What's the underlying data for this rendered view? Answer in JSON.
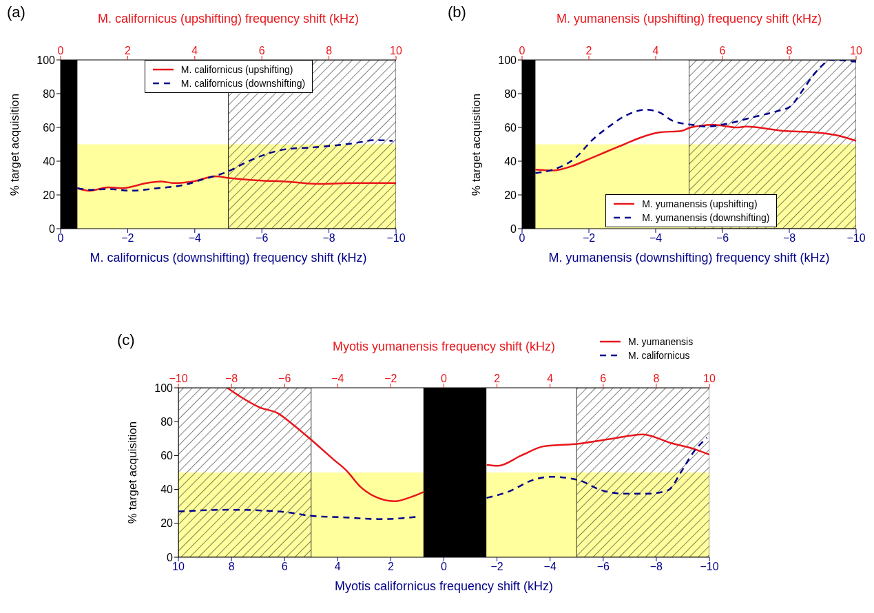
{
  "chart_data": [
    {
      "type": "line",
      "title": "(a)",
      "x2label": "M. californicus (upshifting) frequency shift (kHz)",
      "xlabel": "M. californicus (downshifting) frequency shift (kHz)",
      "ylabel": "% target acquisition",
      "x2lim": [
        0,
        10
      ],
      "x2ticks": [
        0,
        2,
        4,
        6,
        8,
        10
      ],
      "xlim": [
        0,
        -10
      ],
      "xticks": [
        0,
        {
          "value": -2,
          "label": "−2"
        },
        {
          "value": -4,
          "label": "−4"
        },
        {
          "value": -6,
          "label": "−6"
        },
        {
          "value": -8,
          "label": "−8"
        },
        {
          "value": -10,
          "label": "−10"
        }
      ],
      "ylim": [
        0,
        100
      ],
      "yticks": [
        0,
        20,
        40,
        60,
        80,
        100
      ],
      "legend": "top",
      "bands": [
        {
          "axis": "y",
          "from": 0,
          "to": 50,
          "color": "#ffff9e"
        },
        {
          "axis": "x2",
          "from": 5,
          "to": 10
        },
        {
          "axis": "x2",
          "from": 0,
          "to": 0.5,
          "color": "#000000"
        }
      ],
      "series": [
        {
          "name": "M. californicus (upshifting)",
          "color": "#e8161b",
          "axis": "x2",
          "line_style": "solid",
          "x": [
            0.5,
            0.86,
            1.42,
            1.83,
            2.57,
            2.98,
            3.39,
            3.94,
            4.62,
            5.03,
            6.0,
            6.67,
            7.64,
            8.73,
            10
          ],
          "values": [
            24,
            22.5,
            24.5,
            24,
            27,
            28,
            27,
            28,
            31,
            30,
            28.5,
            28,
            26.5,
            27,
            27
          ]
        },
        {
          "name": "M. californicus (downshifting)",
          "color": "#00008b",
          "line_style": "dashed",
          "x": [
            -0.5,
            -0.92,
            -1.42,
            -2.1,
            -2.9,
            -3.7,
            -4.2,
            -5.0,
            -5.6,
            -6.7,
            -7.4,
            -8.0,
            -8.7,
            -9.4,
            -9.9
          ],
          "values": [
            24,
            23,
            23.5,
            22.5,
            24,
            26,
            29,
            34,
            40,
            47,
            48,
            49,
            50.5,
            52.5,
            52
          ]
        }
      ]
    },
    {
      "type": "line",
      "title": "(b)",
      "x2label": "M. yumanensis (upshifting) frequency shift (kHz)",
      "xlabel": "M. yumanensis (downshifting) frequency shift (kHz)",
      "ylabel": "% target acquisition",
      "x2lim": [
        0,
        10
      ],
      "x2ticks": [
        0,
        2,
        4,
        6,
        8,
        10
      ],
      "xlim": [
        0,
        -10
      ],
      "xticks": [
        0,
        {
          "value": -2,
          "label": "−2"
        },
        {
          "value": -4,
          "label": "−4"
        },
        {
          "value": -6,
          "label": "−6"
        },
        {
          "value": -8,
          "label": "−8"
        },
        {
          "value": -10,
          "label": "−10"
        }
      ],
      "ylim": [
        0,
        100
      ],
      "yticks": [
        0,
        20,
        40,
        60,
        80,
        100
      ],
      "legend": "bottom right",
      "bands": [
        {
          "axis": "y",
          "from": 0,
          "to": 50,
          "color": "#ffff9e"
        },
        {
          "axis": "x2",
          "from": 5,
          "to": 10
        },
        {
          "axis": "x2",
          "from": 0,
          "to": 0.4,
          "color": "#000000"
        }
      ],
      "series": [
        {
          "name": "M. yumanensis (upshifting)",
          "color": "#e8161b",
          "axis": "x2",
          "line_style": "solid",
          "x": [
            0.4,
            0.93,
            1.48,
            2.03,
            2.45,
            3.0,
            3.55,
            4.1,
            4.78,
            5.05,
            5.75,
            6.43,
            6.7,
            7.8,
            8.8,
            9.5,
            10
          ],
          "values": [
            35,
            34.5,
            37,
            41.5,
            45,
            49.5,
            54,
            57,
            58,
            60,
            61.5,
            60,
            60.5,
            58,
            57,
            55,
            52
          ]
        },
        {
          "name": "M. yumanensis (downshifting)",
          "color": "#00008b",
          "line_style": "dashed",
          "x": [
            -0.4,
            -0.93,
            -1.6,
            -2.1,
            -2.6,
            -3.1,
            -3.7,
            -4.1,
            -4.5,
            -5.1,
            -5.5,
            -6.1,
            -6.9,
            -7.7,
            -8.0,
            -8.4,
            -8.7,
            -9.0,
            -9.2,
            -10
          ],
          "values": [
            33,
            35,
            42,
            52.5,
            60.5,
            67,
            70.5,
            69,
            64,
            61.5,
            60.5,
            62,
            66,
            70,
            72,
            82,
            90.5,
            97,
            100,
            99
          ]
        }
      ]
    },
    {
      "type": "line",
      "title": "(c)",
      "x2label": "Myotis yumanensis frequency shift (kHz)",
      "xlabel": "Myotis californicus frequency shift (kHz)",
      "ylabel": "% target acquisition",
      "x2lim": [
        -10,
        10
      ],
      "x2ticks": [
        {
          "value": -10,
          "label": "−10"
        },
        {
          "value": -8,
          "label": "−8"
        },
        {
          "value": -6,
          "label": "−6"
        },
        {
          "value": -4,
          "label": "−4"
        },
        {
          "value": -2,
          "label": "−2"
        },
        0,
        2,
        4,
        6,
        8,
        10
      ],
      "xlim": [
        10,
        -10
      ],
      "xticks": [
        10,
        8,
        6,
        4,
        2,
        0,
        {
          "value": -2,
          "label": "−2"
        },
        {
          "value": -4,
          "label": "−4"
        },
        {
          "value": -6,
          "label": "−6"
        },
        {
          "value": -8,
          "label": "−8"
        },
        {
          "value": -10,
          "label": "−10"
        }
      ],
      "ylim": [
        0,
        100
      ],
      "yticks": [
        0,
        20,
        40,
        60,
        80,
        100
      ],
      "legend": "top right",
      "bands": [
        {
          "axis": "y",
          "from": 0,
          "to": 50,
          "color": "#ffff9e"
        },
        {
          "axis": "x2",
          "from": -10,
          "to": -5
        },
        {
          "axis": "x2",
          "from": 5,
          "to": 10
        },
        {
          "axis": "x2",
          "from": -0.77,
          "to": 1.6,
          "color": "#000000"
        }
      ],
      "series": [
        {
          "name": "M. yumanensis",
          "color": "#e8161b",
          "axis": "x2",
          "line_style": "solid",
          "x": [
            -8.16,
            -7.64,
            -6.95,
            -6.26,
            -5.74,
            -5.05,
            -4.18,
            -3.66,
            -3.14,
            -2.63,
            -1.85,
            -1.24,
            -0.77,
            null,
            1.61,
            2.04,
            2.91,
            3.77,
            5.07,
            6.37,
            7.49,
            8.53,
            9.4,
            10
          ],
          "values": [
            100,
            94.5,
            88.5,
            85,
            79,
            70,
            58,
            51,
            41.5,
            36,
            33,
            35.5,
            38.5,
            null,
            54.5,
            54,
            60,
            65.5,
            67,
            70,
            72.5,
            67.5,
            64,
            60.5
          ]
        },
        {
          "name": "M. californicus",
          "color": "#00008b",
          "line_style": "dashed",
          "x": [
            10,
            8.07,
            6.78,
            5.91,
            5.05,
            3.75,
            2.45,
            1.59,
            0.94,
            null,
            -1.61,
            -2.48,
            -3.34,
            -4.03,
            -5.07,
            -5.94,
            -6.8,
            -7.67,
            -8.44,
            -8.96,
            -9.4,
            -9.91
          ],
          "values": [
            27,
            28,
            27.5,
            26.5,
            24.5,
            23.5,
            22.5,
            23,
            24,
            null,
            35,
            39,
            45.5,
            47.5,
            45.5,
            39.5,
            37.5,
            37.5,
            39.5,
            51,
            62,
            70.5
          ]
        }
      ]
    }
  ]
}
